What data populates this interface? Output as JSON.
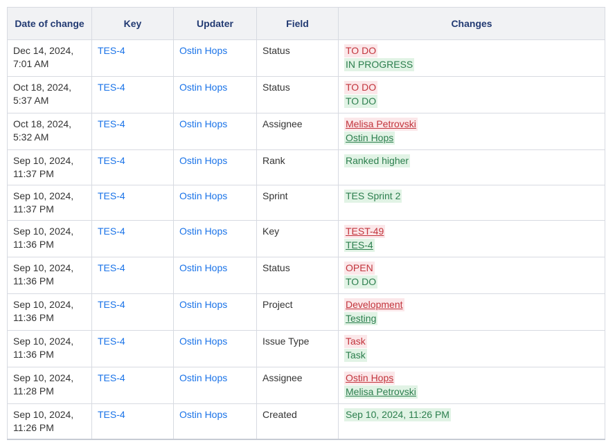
{
  "table": {
    "columns": [
      "Date of change",
      "Key",
      "Updater",
      "Field",
      "Changes"
    ],
    "rows": [
      {
        "date": "Dec 14, 2024, 7:01 AM",
        "key": "TES-4",
        "updater": "Ostin Hops",
        "field": "Status",
        "changes": [
          {
            "text": "TO DO",
            "kind": "removed",
            "link": false
          },
          {
            "text": "IN PROGRESS",
            "kind": "added",
            "link": false
          }
        ]
      },
      {
        "date": "Oct 18, 2024, 5:37 AM",
        "key": "TES-4",
        "updater": "Ostin Hops",
        "field": "Status",
        "changes": [
          {
            "text": "TO DO",
            "kind": "removed",
            "link": false
          },
          {
            "text": "TO DO",
            "kind": "added",
            "link": false
          }
        ]
      },
      {
        "date": "Oct 18, 2024, 5:32 AM",
        "key": "TES-4",
        "updater": "Ostin Hops",
        "field": "Assignee",
        "changes": [
          {
            "text": "Melisa Petrovski",
            "kind": "removed",
            "link": true
          },
          {
            "text": "Ostin Hops",
            "kind": "added",
            "link": true
          }
        ]
      },
      {
        "date": "Sep 10, 2024, 11:37 PM",
        "key": "TES-4",
        "updater": "Ostin Hops",
        "field": "Rank",
        "changes": [
          {
            "text": "Ranked higher",
            "kind": "added",
            "link": false
          }
        ]
      },
      {
        "date": "Sep 10, 2024, 11:37 PM",
        "key": "TES-4",
        "updater": "Ostin Hops",
        "field": "Sprint",
        "changes": [
          {
            "text": "TES Sprint 2",
            "kind": "added",
            "link": false
          }
        ]
      },
      {
        "date": "Sep 10, 2024, 11:36 PM",
        "key": "TES-4",
        "updater": "Ostin Hops",
        "field": "Key",
        "changes": [
          {
            "text": "TEST-49",
            "kind": "removed",
            "link": true
          },
          {
            "text": "TES-4",
            "kind": "added",
            "link": true
          }
        ]
      },
      {
        "date": "Sep 10, 2024, 11:36 PM",
        "key": "TES-4",
        "updater": "Ostin Hops",
        "field": "Status",
        "changes": [
          {
            "text": "OPEN",
            "kind": "removed",
            "link": false
          },
          {
            "text": "TO DO",
            "kind": "added",
            "link": false
          }
        ]
      },
      {
        "date": "Sep 10, 2024, 11:36 PM",
        "key": "TES-4",
        "updater": "Ostin Hops",
        "field": "Project",
        "changes": [
          {
            "text": "Development",
            "kind": "removed",
            "link": true
          },
          {
            "text": "Testing",
            "kind": "added",
            "link": true
          }
        ]
      },
      {
        "date": "Sep 10, 2024, 11:36 PM",
        "key": "TES-4",
        "updater": "Ostin Hops",
        "field": "Issue Type",
        "changes": [
          {
            "text": "Task",
            "kind": "removed",
            "link": false
          },
          {
            "text": "Task",
            "kind": "added",
            "link": false
          }
        ]
      },
      {
        "date": "Sep 10, 2024, 11:28 PM",
        "key": "TES-4",
        "updater": "Ostin Hops",
        "field": "Assignee",
        "changes": [
          {
            "text": "Ostin Hops",
            "kind": "removed",
            "link": true
          },
          {
            "text": "Melisa Petrovski",
            "kind": "added",
            "link": true
          }
        ]
      },
      {
        "date": "Sep 10, 2024, 11:26 PM",
        "key": "TES-4",
        "updater": "Ostin Hops",
        "field": "Created",
        "changes": [
          {
            "text": "Sep 10, 2024, 11:26 PM",
            "kind": "added",
            "link": false
          }
        ]
      }
    ]
  },
  "colors": {
    "header_text": "#223a72",
    "header_bg": "#f1f2f4",
    "border": "#d7dae1",
    "link": "#1a73e8",
    "removed_text": "#c2343c",
    "removed_bg": "#fbe7e9",
    "added_text": "#2b7e4d",
    "added_bg": "#e1f3e5",
    "body_text": "#333333"
  }
}
